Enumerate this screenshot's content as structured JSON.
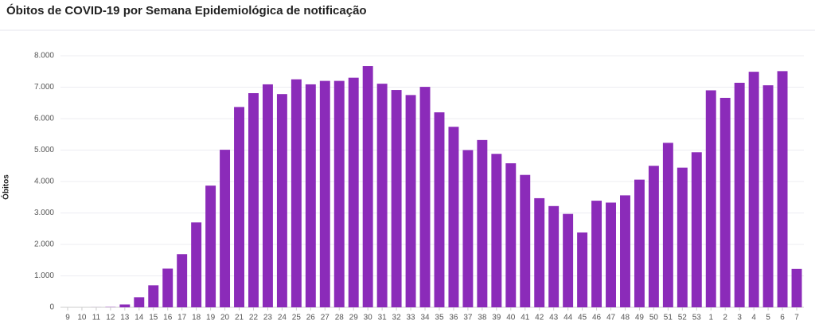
{
  "chart_data": {
    "type": "bar",
    "title": "Óbitos de COVID-19 por Semana Epidemiológica de notificação",
    "y_label": "Óbitos",
    "categories": [
      "9",
      "10",
      "11",
      "12",
      "13",
      "14",
      "15",
      "16",
      "17",
      "18",
      "19",
      "20",
      "21",
      "22",
      "23",
      "24",
      "25",
      "26",
      "27",
      "28",
      "29",
      "30",
      "31",
      "32",
      "33",
      "34",
      "35",
      "36",
      "37",
      "38",
      "39",
      "40",
      "41",
      "42",
      "43",
      "44",
      "45",
      "46",
      "47",
      "48",
      "49",
      "50",
      "51",
      "52",
      "53",
      "1",
      "2",
      "3",
      "4",
      "5",
      "6",
      "7"
    ],
    "values": [
      0,
      0,
      2,
      10,
      90,
      320,
      700,
      1230,
      1690,
      2700,
      3870,
      5010,
      6370,
      6810,
      7090,
      6780,
      7250,
      7090,
      7200,
      7200,
      7300,
      7670,
      7110,
      6910,
      6750,
      7010,
      6200,
      5740,
      5000,
      5320,
      4880,
      4580,
      4210,
      3470,
      3220,
      2970,
      2380,
      3390,
      3330,
      3560,
      4060,
      4500,
      5230,
      4440,
      4930,
      6900,
      6660,
      7140,
      7490,
      7060,
      7510,
      1220
    ],
    "color": "#8b2bb9",
    "ylim": [
      0,
      8000
    ],
    "yticks": [
      0,
      {
        "value": 1000,
        "label": "1.000"
      },
      {
        "value": 2000,
        "label": "2.000"
      },
      {
        "value": 3000,
        "label": "3.000"
      },
      {
        "value": 4000,
        "label": "4.000"
      },
      {
        "value": 5000,
        "label": "5.000"
      },
      {
        "value": 6000,
        "label": "6.000"
      },
      {
        "value": 7000,
        "label": "7.000"
      },
      {
        "value": 8000,
        "label": "8.000"
      }
    ],
    "grid": true
  }
}
